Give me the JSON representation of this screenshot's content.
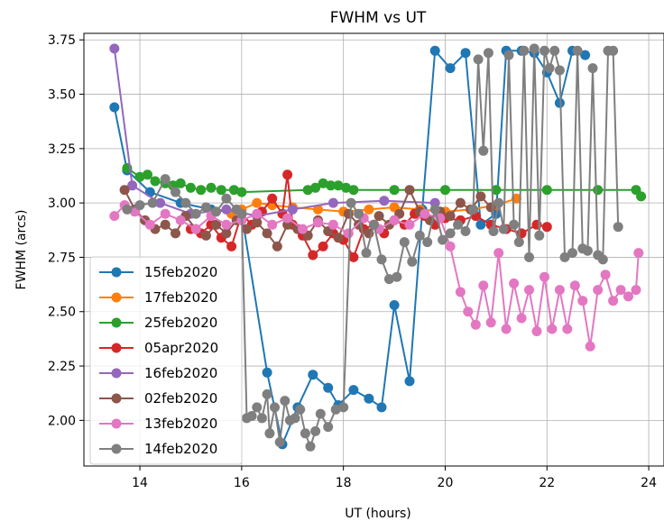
{
  "chart_data": {
    "type": "line",
    "title": "FWHM vs UT",
    "xlabel": "UT (hours)",
    "ylabel": "FWHM (arcs)",
    "xlim": [
      12.9,
      24.3
    ],
    "ylim": [
      1.79,
      3.78
    ],
    "xticks": [
      14,
      16,
      18,
      20,
      22,
      24
    ],
    "yticks": [
      2.0,
      2.25,
      2.5,
      2.75,
      3.0,
      3.25,
      3.5,
      3.75
    ],
    "xtick_labels": [
      "14",
      "16",
      "18",
      "20",
      "22",
      "24"
    ],
    "ytick_labels": [
      "2.00",
      "2.25",
      "2.50",
      "2.75",
      "3.00",
      "3.25",
      "3.50",
      "3.75"
    ],
    "grid": true,
    "legend_position": "lower-left",
    "series": [
      {
        "name": "15feb2020",
        "color": "#1f77b4",
        "x": [
          13.5,
          13.75,
          14.2,
          14.8,
          15.4,
          16.0,
          16.5,
          16.8,
          17.1,
          17.4,
          17.7,
          17.9,
          18.2,
          18.5,
          18.75,
          19.0,
          19.3,
          19.55,
          19.8,
          20.1,
          20.4,
          20.7,
          21.0,
          21.2,
          21.5,
          21.75,
          22.0,
          22.25,
          22.5,
          22.75
        ],
        "y": [
          3.44,
          3.15,
          3.05,
          3.0,
          2.97,
          2.95,
          2.22,
          1.89,
          2.06,
          2.21,
          2.15,
          2.07,
          2.14,
          2.1,
          2.06,
          2.53,
          2.18,
          2.97,
          3.7,
          3.62,
          3.69,
          2.9,
          2.95,
          3.7,
          3.7,
          3.69,
          3.6,
          3.46,
          3.7,
          3.68
        ]
      },
      {
        "name": "17feb2020",
        "color": "#ff7f0e",
        "x": [
          15.8,
          16.0,
          16.3,
          16.6,
          17.0,
          17.5,
          18.0,
          18.5,
          19.0,
          19.5,
          20.0,
          20.5,
          21.0,
          21.4
        ],
        "y": [
          2.95,
          2.97,
          3.0,
          2.99,
          2.98,
          2.97,
          2.96,
          2.97,
          2.98,
          2.97,
          2.96,
          2.97,
          2.99,
          3.02
        ]
      },
      {
        "name": "25feb2020",
        "color": "#2ca02c",
        "x": [
          13.75,
          14.0,
          14.15,
          14.3,
          14.5,
          14.65,
          14.8,
          15.0,
          15.2,
          15.4,
          15.6,
          15.85,
          16.0,
          17.3,
          17.45,
          17.6,
          17.75,
          17.9,
          18.05,
          18.2,
          19.0,
          20.0,
          21.0,
          22.0,
          23.0,
          23.75,
          23.85
        ],
        "y": [
          3.16,
          3.12,
          3.13,
          3.1,
          3.09,
          3.08,
          3.09,
          3.07,
          3.06,
          3.07,
          3.06,
          3.06,
          3.05,
          3.06,
          3.07,
          3.09,
          3.08,
          3.08,
          3.07,
          3.06,
          3.06,
          3.06,
          3.06,
          3.06,
          3.06,
          3.06,
          3.03
        ]
      },
      {
        "name": "05apr2020",
        "color": "#d62728",
        "x": [
          15.0,
          15.2,
          15.4,
          15.6,
          15.8,
          16.0,
          16.2,
          16.4,
          16.6,
          16.8,
          16.9,
          17.0,
          17.2,
          17.4,
          17.6,
          17.8,
          18.0,
          18.2,
          18.4,
          18.6,
          18.8,
          19.0,
          19.2,
          19.4,
          19.6,
          19.8,
          20.0,
          20.3,
          20.6,
          20.9,
          21.2,
          21.5,
          21.8,
          22.0
        ],
        "y": [
          2.88,
          2.86,
          2.9,
          2.84,
          2.8,
          2.95,
          2.9,
          2.96,
          3.02,
          2.95,
          3.13,
          2.9,
          2.85,
          2.76,
          2.8,
          2.86,
          2.83,
          2.75,
          2.88,
          2.9,
          2.86,
          2.92,
          2.9,
          2.95,
          2.94,
          2.9,
          2.93,
          2.92,
          2.94,
          2.9,
          2.88,
          2.86,
          2.9,
          2.89
        ]
      },
      {
        "name": "16feb2020",
        "color": "#9467bd",
        "x": [
          13.5,
          13.85,
          14.4,
          15.0,
          15.7,
          16.3,
          17.0,
          17.8,
          18.8,
          19.8
        ],
        "y": [
          3.71,
          3.08,
          3.0,
          2.95,
          2.97,
          2.94,
          2.97,
          3.0,
          3.01,
          3.0
        ]
      },
      {
        "name": "02feb2020",
        "color": "#8c564b",
        "x": [
          13.7,
          13.9,
          14.1,
          14.3,
          14.5,
          14.7,
          14.9,
          15.1,
          15.3,
          15.5,
          15.7,
          15.9,
          16.1,
          16.3,
          16.5,
          16.7,
          16.9,
          17.1,
          17.3,
          17.5,
          17.7,
          17.9,
          18.1,
          18.3,
          18.5,
          18.7,
          18.9,
          19.1,
          19.3,
          19.5,
          19.7,
          19.9,
          20.1,
          20.3,
          20.5,
          20.7,
          20.9
        ],
        "y": [
          3.06,
          2.97,
          2.92,
          2.88,
          2.9,
          2.86,
          2.94,
          2.88,
          2.85,
          2.9,
          2.86,
          2.92,
          2.88,
          2.91,
          2.86,
          2.8,
          2.9,
          2.88,
          2.85,
          2.92,
          2.87,
          2.84,
          2.95,
          2.9,
          2.86,
          2.94,
          2.9,
          2.95,
          3.06,
          2.96,
          2.92,
          2.96,
          2.94,
          3.0,
          2.97,
          3.03,
          2.98
        ]
      },
      {
        "name": "13feb2020",
        "color": "#e377c2",
        "x": [
          13.5,
          13.7,
          13.9,
          14.2,
          14.5,
          14.8,
          15.1,
          15.4,
          15.7,
          16.0,
          16.3,
          16.6,
          16.9,
          17.2,
          17.5,
          17.8,
          18.1,
          18.4,
          18.7,
          19.0,
          19.3,
          19.6,
          19.9,
          20.1,
          20.3,
          20.45,
          20.6,
          20.75,
          20.9,
          21.05,
          21.2,
          21.35,
          21.5,
          21.65,
          21.8,
          21.95,
          22.1,
          22.25,
          22.4,
          22.55,
          22.7,
          22.85,
          23.0,
          23.15,
          23.3,
          23.45,
          23.6,
          23.75,
          23.8
        ],
        "y": [
          2.94,
          2.99,
          2.96,
          2.9,
          2.95,
          2.92,
          2.88,
          2.94,
          2.9,
          2.92,
          2.95,
          2.9,
          2.93,
          2.88,
          2.91,
          2.9,
          2.86,
          2.93,
          2.88,
          2.92,
          2.9,
          2.95,
          2.93,
          2.8,
          2.59,
          2.5,
          2.44,
          2.62,
          2.45,
          2.77,
          2.42,
          2.63,
          2.47,
          2.6,
          2.41,
          2.66,
          2.42,
          2.6,
          2.42,
          2.62,
          2.55,
          2.34,
          2.6,
          2.67,
          2.55,
          2.6,
          2.57,
          2.6,
          2.77
        ]
      },
      {
        "name": "14feb2020",
        "color": "#7f7f7f",
        "x": [
          13.75,
          14.0,
          14.25,
          14.5,
          14.7,
          14.9,
          15.1,
          15.3,
          15.5,
          15.7,
          15.9,
          16.0,
          16.1,
          16.2,
          16.3,
          16.4,
          16.5,
          16.55,
          16.65,
          16.75,
          16.85,
          16.95,
          17.05,
          17.15,
          17.25,
          17.35,
          17.45,
          17.55,
          17.7,
          17.85,
          18.0,
          18.15,
          18.3,
          18.45,
          18.6,
          18.75,
          18.9,
          19.05,
          19.2,
          19.35,
          19.5,
          19.65,
          19.8,
          19.95,
          20.1,
          20.25,
          20.4,
          20.55,
          20.65,
          20.75,
          20.85,
          20.95,
          21.05,
          21.15,
          21.25,
          21.35,
          21.45,
          21.55,
          21.65,
          21.75,
          21.85,
          21.95,
          22.05,
          22.15,
          22.25,
          22.35,
          22.5,
          22.6,
          22.7,
          22.8,
          22.9,
          23.0,
          23.1,
          23.2,
          23.3,
          23.4
        ],
        "y": [
          2.97,
          2.99,
          3.0,
          3.11,
          3.05,
          3.0,
          2.95,
          2.98,
          2.96,
          3.02,
          2.97,
          2.95,
          2.01,
          2.02,
          2.06,
          2.01,
          2.12,
          1.94,
          2.06,
          1.9,
          2.09,
          2.0,
          2.01,
          2.05,
          1.94,
          1.88,
          1.95,
          2.03,
          1.97,
          2.05,
          2.06,
          3.0,
          2.95,
          2.77,
          2.9,
          2.74,
          2.65,
          2.66,
          2.82,
          2.73,
          2.85,
          2.82,
          2.97,
          2.83,
          2.86,
          2.9,
          2.87,
          2.97,
          3.66,
          3.24,
          3.69,
          2.87,
          3.0,
          2.88,
          3.68,
          2.9,
          2.82,
          3.7,
          2.75,
          3.71,
          2.85,
          3.7,
          3.62,
          3.7,
          3.61,
          2.75,
          2.77,
          3.7,
          2.79,
          2.78,
          3.62,
          2.76,
          2.74,
          3.7,
          3.7,
          2.89
        ]
      }
    ]
  }
}
